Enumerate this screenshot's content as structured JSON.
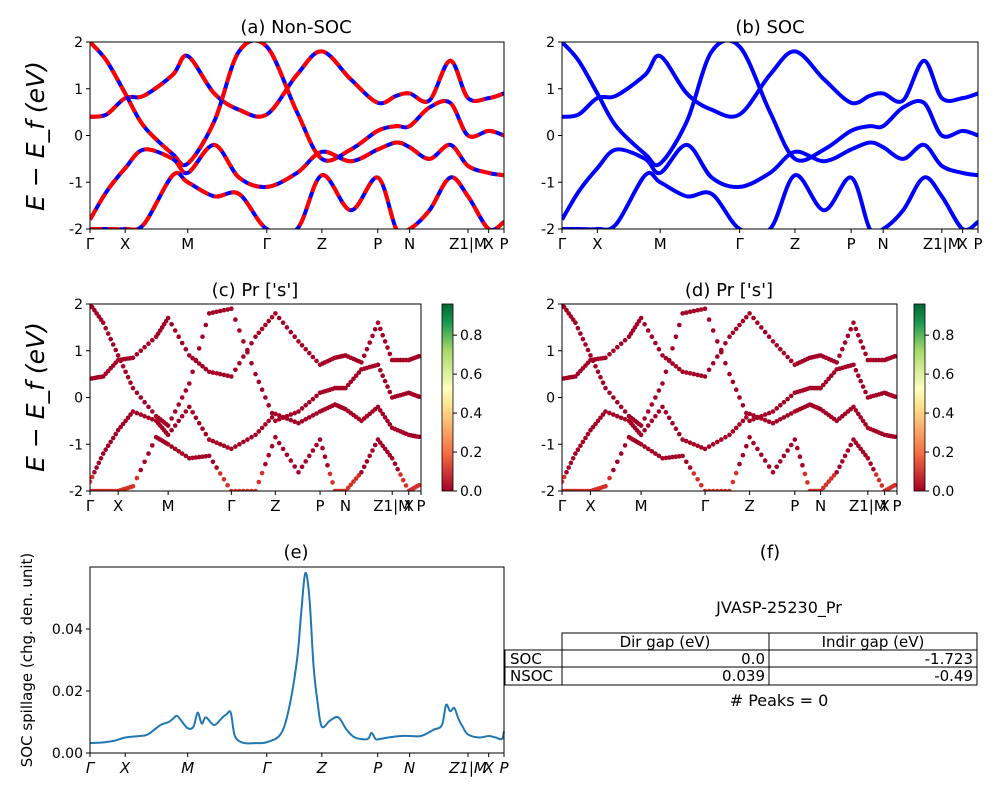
{
  "colors": {
    "nonsoc_a": "#0000ff",
    "nonsoc_b": "#ff0000",
    "soc": "#0000ff",
    "spillage": "#1f77b4"
  },
  "kpath_labels": [
    "Γ",
    "X",
    "M",
    "Γ",
    "Z",
    "P",
    "N",
    "Z1|M",
    "X",
    "P"
  ],
  "kpath_ticks": [
    0.0,
    0.085,
    0.236,
    0.427,
    0.56,
    0.695,
    0.772,
    0.913,
    0.963,
    1.0
  ],
  "ylabel": "E − E_f (eV)",
  "spillage_ylabel": "SOC spillage (chg. den. unit)",
  "colorbar": {
    "ticks": [
      "0.0",
      "0.2",
      "0.4",
      "0.6",
      "0.8"
    ],
    "colormap": "RdYlGn"
  },
  "panels": {
    "a": {
      "title": "(a) Non-SOC"
    },
    "b": {
      "title": "(b) SOC"
    },
    "c": {
      "title": "(c)  Pr ['s']"
    },
    "d": {
      "title": "(d) Pr ['s']"
    },
    "e": {
      "title": "(e)"
    },
    "f": {
      "title": "(f)"
    }
  },
  "info": {
    "name": "JVASP-25230_Pr",
    "table_header": [
      "",
      "Dir gap (eV)",
      "Indir gap (eV)"
    ],
    "table_rows": [
      [
        "SOC",
        "0.0",
        "-1.723"
      ],
      [
        "NSOC",
        "0.039",
        "-0.49"
      ]
    ],
    "peaks": "# Peaks = 0"
  },
  "chart_data": [
    {
      "type": "line",
      "title": "(a) Non-SOC",
      "ylabel": "E − E_f (eV)",
      "ylim": [
        -2,
        2
      ],
      "yticks": [
        -2,
        -1,
        0,
        1,
        2
      ],
      "xlim": [
        0,
        1
      ],
      "series": [
        {
          "x": [
            0,
            0.04,
            0.085,
            0.13,
            0.2,
            0.236,
            0.3,
            0.36,
            0.427,
            0.5,
            0.56,
            0.63,
            0.695,
            0.74,
            0.772,
            0.82,
            0.87,
            0.913,
            0.963,
            1.0
          ],
          "y": [
            0.4,
            0.45,
            0.8,
            0.85,
            1.3,
            1.7,
            0.9,
            0.55,
            0.45,
            1.3,
            1.8,
            1.2,
            0.7,
            0.85,
            0.9,
            0.75,
            1.6,
            0.8,
            0.8,
            0.9
          ]
        },
        {
          "x": [
            0,
            0.04,
            0.085,
            0.13,
            0.2,
            0.236,
            0.3,
            0.36,
            0.427,
            0.5,
            0.56,
            0.63,
            0.695,
            0.74,
            0.772,
            0.82,
            0.87,
            0.913,
            0.963,
            1.0
          ],
          "y": [
            2.0,
            1.6,
            0.9,
            0.2,
            -0.4,
            -0.6,
            0.3,
            1.8,
            1.9,
            0.5,
            -0.5,
            -0.3,
            0.1,
            0.2,
            0.2,
            0.6,
            0.7,
            0.0,
            0.1,
            0.0
          ]
        },
        {
          "x": [
            0,
            0.04,
            0.085,
            0.13,
            0.2,
            0.236,
            0.3,
            0.36,
            0.427,
            0.5,
            0.56,
            0.63,
            0.695,
            0.74,
            0.772,
            0.82,
            0.87,
            0.913,
            0.963,
            1.0
          ],
          "y": [
            -1.8,
            -1.2,
            -0.7,
            -0.3,
            -0.5,
            -0.8,
            -0.2,
            -0.9,
            -1.1,
            -0.8,
            -0.35,
            -0.55,
            -0.3,
            -0.15,
            -0.25,
            -0.5,
            -0.2,
            -0.65,
            -0.8,
            -0.85
          ]
        },
        {
          "x": [
            0,
            0.04,
            0.085,
            0.13,
            0.2,
            0.236,
            0.3,
            0.36,
            0.427,
            0.5,
            0.56,
            0.63,
            0.695,
            0.74,
            0.772,
            0.82,
            0.87,
            0.913,
            0.963,
            1.0
          ],
          "y": [
            -2.0,
            -2.0,
            -2.0,
            -1.9,
            -0.85,
            -1.0,
            -1.3,
            -1.25,
            -2.0,
            -2.0,
            -0.85,
            -1.6,
            -0.9,
            -2.0,
            -2.0,
            -1.6,
            -0.9,
            -1.3,
            -2.0,
            -1.85
          ]
        }
      ]
    },
    {
      "type": "line",
      "title": "(b) SOC",
      "ylim": [
        -2,
        2
      ],
      "yticks": [
        -2,
        -1,
        0,
        1,
        2
      ],
      "xlim": [
        0,
        1
      ],
      "series": [
        {
          "x": [
            0,
            0.04,
            0.085,
            0.13,
            0.2,
            0.236,
            0.3,
            0.36,
            0.427,
            0.5,
            0.56,
            0.63,
            0.695,
            0.74,
            0.772,
            0.82,
            0.87,
            0.913,
            0.963,
            1.0
          ],
          "y": [
            0.4,
            0.45,
            0.8,
            0.85,
            1.3,
            1.7,
            0.9,
            0.55,
            0.45,
            1.3,
            1.8,
            1.2,
            0.7,
            0.85,
            0.9,
            0.75,
            1.6,
            0.8,
            0.8,
            0.9
          ]
        },
        {
          "x": [
            0,
            0.04,
            0.085,
            0.13,
            0.2,
            0.236,
            0.3,
            0.36,
            0.427,
            0.5,
            0.56,
            0.63,
            0.695,
            0.74,
            0.772,
            0.82,
            0.87,
            0.913,
            0.963,
            1.0
          ],
          "y": [
            2.0,
            1.6,
            0.9,
            0.2,
            -0.4,
            -0.6,
            0.3,
            1.8,
            1.9,
            0.5,
            -0.5,
            -0.3,
            0.1,
            0.2,
            0.2,
            0.6,
            0.7,
            0.0,
            0.1,
            0.0
          ]
        },
        {
          "x": [
            0,
            0.04,
            0.085,
            0.13,
            0.2,
            0.236,
            0.3,
            0.36,
            0.427,
            0.5,
            0.56,
            0.63,
            0.695,
            0.74,
            0.772,
            0.82,
            0.87,
            0.913,
            0.963,
            1.0
          ],
          "y": [
            -1.8,
            -1.2,
            -0.7,
            -0.3,
            -0.5,
            -0.8,
            -0.2,
            -0.9,
            -1.1,
            -0.8,
            -0.35,
            -0.55,
            -0.3,
            -0.15,
            -0.25,
            -0.5,
            -0.2,
            -0.65,
            -0.8,
            -0.85
          ]
        },
        {
          "x": [
            0,
            0.04,
            0.085,
            0.13,
            0.2,
            0.236,
            0.3,
            0.36,
            0.427,
            0.5,
            0.56,
            0.63,
            0.695,
            0.74,
            0.772,
            0.82,
            0.87,
            0.913,
            0.963,
            1.0
          ],
          "y": [
            -2.0,
            -2.0,
            -2.0,
            -1.9,
            -0.85,
            -1.0,
            -1.3,
            -1.25,
            -2.0,
            -2.0,
            -0.85,
            -1.6,
            -0.9,
            -2.0,
            -2.0,
            -1.6,
            -0.9,
            -1.3,
            -2.0,
            -1.85
          ]
        }
      ]
    },
    {
      "type": "scatter",
      "title": "(c)  Pr ['s']",
      "ylim": [
        -2,
        2
      ],
      "yticks": [
        -2,
        -1,
        0,
        1,
        2
      ],
      "color_range": [
        0,
        1
      ],
      "note": "projected s-character weights are near 0 everywhere, rising to ~0.15 near the band minima"
    },
    {
      "type": "scatter",
      "title": "(d) Pr ['s']",
      "ylim": [
        -2,
        2
      ],
      "yticks": [
        -2,
        -1,
        0,
        1,
        2
      ],
      "color_range": [
        0,
        1
      ]
    },
    {
      "type": "line",
      "title": "(e)",
      "ylabel": "SOC spillage (chg. den. unit)",
      "ylim": [
        0,
        0.06
      ],
      "yticks": [
        0.0,
        0.02,
        0.04
      ],
      "x": [
        0.0,
        0.03,
        0.06,
        0.085,
        0.12,
        0.14,
        0.17,
        0.19,
        0.2,
        0.21,
        0.22,
        0.236,
        0.25,
        0.26,
        0.27,
        0.28,
        0.3,
        0.32,
        0.33,
        0.34,
        0.35,
        0.37,
        0.4,
        0.427,
        0.46,
        0.48,
        0.5,
        0.51,
        0.52,
        0.53,
        0.54,
        0.55,
        0.56,
        0.58,
        0.6,
        0.62,
        0.64,
        0.67,
        0.68,
        0.69,
        0.7,
        0.72,
        0.75,
        0.772,
        0.8,
        0.83,
        0.85,
        0.86,
        0.87,
        0.88,
        0.89,
        0.9,
        0.913,
        0.94,
        0.963,
        0.98,
        0.995,
        1.0
      ],
      "y": [
        0.0032,
        0.0034,
        0.004,
        0.005,
        0.0055,
        0.006,
        0.009,
        0.01,
        0.011,
        0.012,
        0.0105,
        0.008,
        0.0085,
        0.013,
        0.0095,
        0.0115,
        0.009,
        0.0115,
        0.0125,
        0.013,
        0.0055,
        0.0033,
        0.0032,
        0.0035,
        0.006,
        0.014,
        0.03,
        0.045,
        0.058,
        0.05,
        0.028,
        0.016,
        0.0085,
        0.0105,
        0.0115,
        0.0075,
        0.005,
        0.0045,
        0.0065,
        0.0045,
        0.0045,
        0.005,
        0.0055,
        0.0055,
        0.0055,
        0.0075,
        0.009,
        0.0155,
        0.0135,
        0.0145,
        0.011,
        0.0085,
        0.006,
        0.005,
        0.0055,
        0.005,
        0.0045,
        0.007
      ]
    }
  ]
}
